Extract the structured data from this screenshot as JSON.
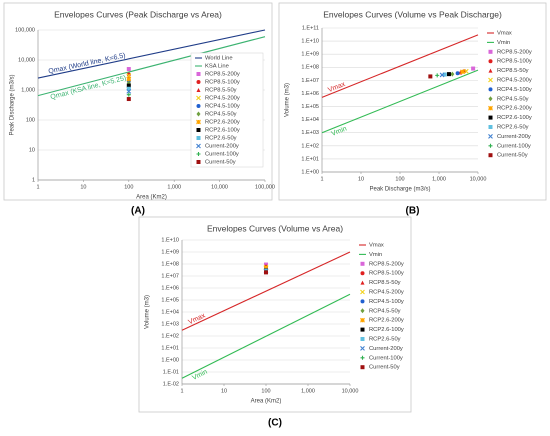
{
  "chart_data": [
    {
      "type": "scatter",
      "panel": "(A)",
      "title": "Envelopes Curves (Peak Discharge vs Area)",
      "x_label": "Area (Km2)",
      "y_label": "Peak Discharge (m3/s)",
      "xscale": "log",
      "yscale": "log",
      "grid": true,
      "legend": "right",
      "xlim": [
        1,
        100000
      ],
      "ylim": [
        1,
        100000
      ],
      "xticks": [
        1,
        10,
        100,
        {
          "value": 1000,
          "label": "1,000"
        },
        {
          "value": 10000,
          "label": "10,000"
        },
        {
          "value": 100000,
          "label": "100,000"
        }
      ],
      "yticks": [
        1,
        10,
        100,
        {
          "value": 1000,
          "label": "1,000"
        },
        {
          "value": 10000,
          "label": "10,000"
        },
        {
          "value": 100000,
          "label": "100,000"
        }
      ],
      "series": [
        {
          "name": "World Line",
          "marker": "line",
          "color": "#1f3c88",
          "label": "Qmax (World line, K=6.5)",
          "x": [
            1,
            100000
          ],
          "values": [
            2500,
            100000
          ]
        },
        {
          "name": "KSA Line",
          "marker": "line",
          "color": "#3cb371",
          "label": "Qmax (KSA line, K=5.25)",
          "x": [
            1,
            100000
          ],
          "values": [
            650,
            60000
          ]
        },
        {
          "name": "RCP8.5-200y",
          "marker": "square",
          "color": "#d966d9",
          "x": [
            100
          ],
          "values": [
            5000
          ]
        },
        {
          "name": "RCP8.5-100y",
          "marker": "circle",
          "color": "#e02020",
          "x": [
            100
          ],
          "values": [
            3300
          ]
        },
        {
          "name": "RCP8.5-50y",
          "marker": "triangle",
          "color": "#e02020",
          "x": [
            100
          ],
          "values": [
            2600
          ]
        },
        {
          "name": "RCP4.5-200y",
          "marker": "x",
          "color": "#f2d21b",
          "x": [
            100
          ],
          "values": [
            3000
          ]
        },
        {
          "name": "RCP4.5-100y",
          "marker": "circle",
          "color": "#2060d0",
          "x": [
            100
          ],
          "values": [
            2000
          ]
        },
        {
          "name": "RCP4.5-50y",
          "marker": "diamond",
          "color": "#70a040",
          "x": [
            100
          ],
          "values": [
            1700
          ]
        },
        {
          "name": "RCP2.6-200y",
          "marker": "star",
          "color": "#ffa500",
          "x": [
            100
          ],
          "values": [
            2300
          ]
        },
        {
          "name": "RCP2.6-100y",
          "marker": "square",
          "color": "#000000",
          "x": [
            100
          ],
          "values": [
            1400
          ]
        },
        {
          "name": "RCP2.6-50y",
          "marker": "square",
          "color": "#60c0e0",
          "x": [
            100
          ],
          "values": [
            1100
          ]
        },
        {
          "name": "Current-200y",
          "marker": "x",
          "color": "#4080d0",
          "x": [
            100
          ],
          "values": [
            900
          ]
        },
        {
          "name": "Current-100y",
          "marker": "plus",
          "color": "#30b050",
          "x": [
            100
          ],
          "values": [
            700
          ]
        },
        {
          "name": "Current-50y",
          "marker": "square",
          "color": "#a01010",
          "x": [
            100
          ],
          "values": [
            500
          ]
        }
      ]
    },
    {
      "type": "scatter",
      "panel": "(B)",
      "title": "Envelopes Curves (Volume vs Peak Discharge)",
      "x_label": "Peak Discharge (m3/s)",
      "y_label": "Volume (m3)",
      "xscale": "log",
      "yscale": "log",
      "grid": true,
      "legend": "outside-right",
      "xlim": [
        1,
        10000
      ],
      "ylim": [
        1,
        100000000000
      ],
      "xticks": [
        1,
        10,
        100,
        {
          "value": 1000,
          "label": "1,000"
        },
        {
          "value": 10000,
          "label": "10,000"
        }
      ],
      "yticks": [
        {
          "value": 1,
          "label": "1.E+00"
        },
        {
          "value": 10,
          "label": "1.E+01"
        },
        {
          "value": 100,
          "label": "1.E+02"
        },
        {
          "value": 1000,
          "label": "1.E+03"
        },
        {
          "value": 10000,
          "label": "1.E+04"
        },
        {
          "value": 100000,
          "label": "1.E+05"
        },
        {
          "value": 1000000,
          "label": "1.E+06"
        },
        {
          "value": 10000000,
          "label": "1.E+07"
        },
        {
          "value": 100000000,
          "label": "1.E+08"
        },
        {
          "value": 1000000000,
          "label": "1.E+09"
        },
        {
          "value": 10000000000,
          "label": "1.E+10"
        },
        {
          "value": 100000000000,
          "label": "1.E+11"
        }
      ],
      "series": [
        {
          "name": "Vmax",
          "marker": "line",
          "color": "#d62728",
          "label": "Vmax",
          "x": [
            1,
            10000
          ],
          "values": [
            500000,
            30000000000
          ]
        },
        {
          "name": "Vmin",
          "marker": "line",
          "color": "#33bb55",
          "label": "Vmin",
          "x": [
            1,
            10000
          ],
          "values": [
            1000,
            60000000
          ]
        },
        {
          "name": "RCP8.5-200y",
          "marker": "square",
          "color": "#d966d9",
          "x": [
            7500
          ],
          "values": [
            80000000
          ]
        },
        {
          "name": "RCP8.5-100y",
          "marker": "circle",
          "color": "#e02020",
          "x": [
            4500
          ],
          "values": [
            50000000
          ]
        },
        {
          "name": "RCP8.5-50y",
          "marker": "triangle",
          "color": "#e02020",
          "x": [
            3500
          ],
          "values": [
            40000000
          ]
        },
        {
          "name": "RCP4.5-200y",
          "marker": "x",
          "color": "#f2d21b",
          "x": [
            5000
          ],
          "values": [
            50000000
          ]
        },
        {
          "name": "RCP4.5-100y",
          "marker": "circle",
          "color": "#2060d0",
          "x": [
            3000
          ],
          "values": [
            35000000
          ]
        },
        {
          "name": "RCP4.5-50y",
          "marker": "diamond",
          "color": "#70a040",
          "x": [
            2200
          ],
          "values": [
            30000000
          ]
        },
        {
          "name": "RCP2.6-200y",
          "marker": "star",
          "color": "#ffa500",
          "x": [
            4000
          ],
          "values": [
            45000000
          ]
        },
        {
          "name": "RCP2.6-100y",
          "marker": "square",
          "color": "#000000",
          "x": [
            1800
          ],
          "values": [
            30000000
          ]
        },
        {
          "name": "RCP2.6-50y",
          "marker": "square",
          "color": "#60c0e0",
          "x": [
            1400
          ],
          "values": [
            28000000
          ]
        },
        {
          "name": "Current-200y",
          "marker": "x",
          "color": "#4080d0",
          "x": [
            1200
          ],
          "values": [
            26000000
          ]
        },
        {
          "name": "Current-100y",
          "marker": "plus",
          "color": "#30b050",
          "x": [
            900
          ],
          "values": [
            24000000
          ]
        },
        {
          "name": "Current-50y",
          "marker": "square",
          "color": "#a01010",
          "x": [
            600
          ],
          "values": [
            20000000
          ]
        }
      ]
    },
    {
      "type": "scatter",
      "panel": "(C)",
      "title": "Envelopes Curves (Volume vs Area)",
      "x_label": "Area (Km2)",
      "y_label": "Volume (m3)",
      "xscale": "log",
      "yscale": "log",
      "grid": true,
      "legend": "outside-right",
      "xlim": [
        1,
        10000
      ],
      "ylim": [
        0.01,
        10000000000
      ],
      "xticks": [
        1,
        10,
        100,
        {
          "value": 1000,
          "label": "1,000"
        },
        {
          "value": 10000,
          "label": "10,000"
        }
      ],
      "yticks": [
        {
          "value": 0.01,
          "label": "1.E-02"
        },
        {
          "value": 0.1,
          "label": "1.E-01"
        },
        {
          "value": 1,
          "label": "1.E+00"
        },
        {
          "value": 10,
          "label": "1.E+01"
        },
        {
          "value": 100,
          "label": "1.E+02"
        },
        {
          "value": 1000,
          "label": "1.E+03"
        },
        {
          "value": 10000,
          "label": "1.E+04"
        },
        {
          "value": 100000,
          "label": "1.E+05"
        },
        {
          "value": 1000000,
          "label": "1.E+06"
        },
        {
          "value": 10000000,
          "label": "1.E+07"
        },
        {
          "value": 100000000,
          "label": "1.E+08"
        },
        {
          "value": 1000000000,
          "label": "1.E+09"
        },
        {
          "value": 10000000000,
          "label": "1.E+10"
        }
      ],
      "series": [
        {
          "name": "Vmax",
          "marker": "line",
          "color": "#d62728",
          "label": "Vmax",
          "x": [
            1,
            10000
          ],
          "values": [
            300,
            1000000000
          ]
        },
        {
          "name": "Vmin",
          "marker": "line",
          "color": "#33bb55",
          "label": "Vmin",
          "x": [
            1,
            10000
          ],
          "values": [
            0.03,
            300000
          ]
        },
        {
          "name": "RCP8.5-200y",
          "marker": "square",
          "color": "#d966d9",
          "x": [
            100
          ],
          "values": [
            90000000
          ]
        },
        {
          "name": "RCP8.5-100y",
          "marker": "circle",
          "color": "#e02020",
          "x": [
            100
          ],
          "values": [
            60000000
          ]
        },
        {
          "name": "RCP8.5-50y",
          "marker": "triangle",
          "color": "#e02020",
          "x": [
            100
          ],
          "values": [
            50000000
          ]
        },
        {
          "name": "RCP4.5-200y",
          "marker": "x",
          "color": "#f2d21b",
          "x": [
            100
          ],
          "values": [
            55000000
          ]
        },
        {
          "name": "RCP4.5-100y",
          "marker": "circle",
          "color": "#2060d0",
          "x": [
            100
          ],
          "values": [
            40000000
          ]
        },
        {
          "name": "RCP4.5-50y",
          "marker": "diamond",
          "color": "#70a040",
          "x": [
            100
          ],
          "values": [
            35000000
          ]
        },
        {
          "name": "RCP2.6-200y",
          "marker": "star",
          "color": "#ffa500",
          "x": [
            100
          ],
          "values": [
            45000000
          ]
        },
        {
          "name": "RCP2.6-100y",
          "marker": "square",
          "color": "#000000",
          "x": [
            100
          ],
          "values": [
            30000000
          ]
        },
        {
          "name": "RCP2.6-50y",
          "marker": "square",
          "color": "#60c0e0",
          "x": [
            100
          ],
          "values": [
            28000000
          ]
        },
        {
          "name": "Current-200y",
          "marker": "x",
          "color": "#4080d0",
          "x": [
            100
          ],
          "values": [
            25000000
          ]
        },
        {
          "name": "Current-100y",
          "marker": "plus",
          "color": "#30b050",
          "x": [
            100
          ],
          "values": [
            22000000
          ]
        },
        {
          "name": "Current-50y",
          "marker": "square",
          "color": "#a01010",
          "x": [
            100
          ],
          "values": [
            20000000
          ]
        }
      ]
    }
  ]
}
